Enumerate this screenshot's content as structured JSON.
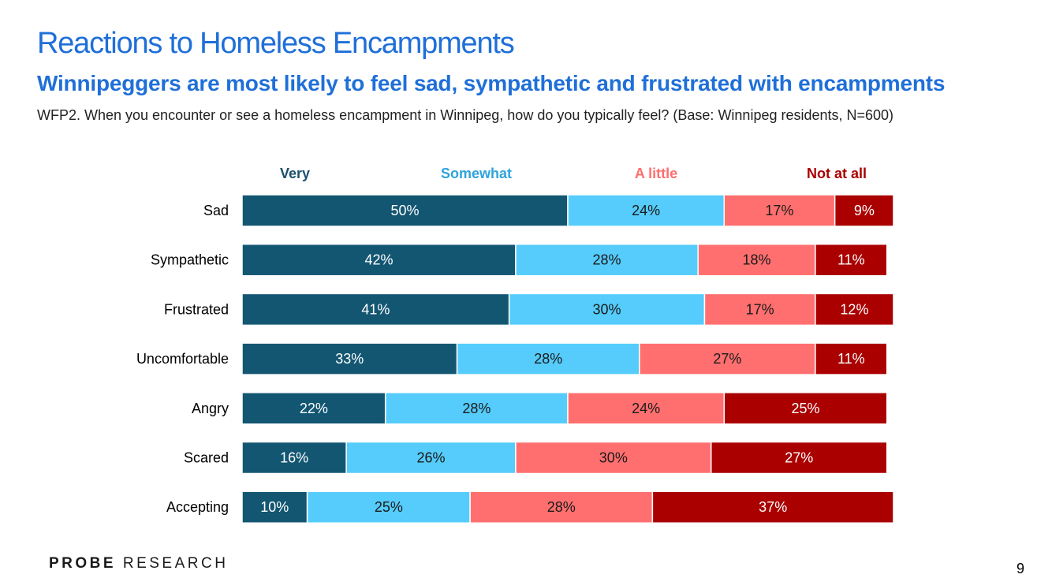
{
  "header": {
    "title": "Reactions to Homeless Encampments",
    "subtitle": "Winnipeggers are most likely to feel sad, sympathetic and frustrated with encampments",
    "question": "WFP2. When you encounter or see a homeless encampment in Winnipeg, how do you typically feel? (Base: Winnipeg residents, N=600)"
  },
  "footer": {
    "logo_bold": "PROBE",
    "logo_rest": "RESEARCH",
    "page_number": "9"
  },
  "chart_data": {
    "type": "bar",
    "orientation": "horizontal",
    "stacked": true,
    "title": "",
    "xlabel": "",
    "ylabel": "",
    "xlim": [
      0,
      100
    ],
    "legend_position": "top",
    "categories": [
      "Sad",
      "Sympathetic",
      "Frustrated",
      "Uncomfortable",
      "Angry",
      "Scared",
      "Accepting"
    ],
    "series": [
      {
        "name": "Very",
        "color": "#135672",
        "label_color": "#ffffff",
        "legend_color": "#1b4f6e",
        "values": [
          50,
          42,
          41,
          33,
          22,
          16,
          10
        ]
      },
      {
        "name": "Somewhat",
        "color": "#55ccfb",
        "label_color": "#1a1a1a",
        "legend_color": "#2ea3dc",
        "values": [
          24,
          28,
          30,
          28,
          28,
          26,
          25
        ]
      },
      {
        "name": "A little",
        "color": "#ff6f6f",
        "label_color": "#1a1a1a",
        "legend_color": "#ff6e6e",
        "values": [
          17,
          18,
          17,
          27,
          24,
          30,
          28
        ]
      },
      {
        "name": "Not at all",
        "color": "#aa0000",
        "label_color": "#ffffff",
        "legend_color": "#aa0000",
        "values": [
          9,
          11,
          12,
          11,
          25,
          27,
          37
        ]
      }
    ]
  }
}
